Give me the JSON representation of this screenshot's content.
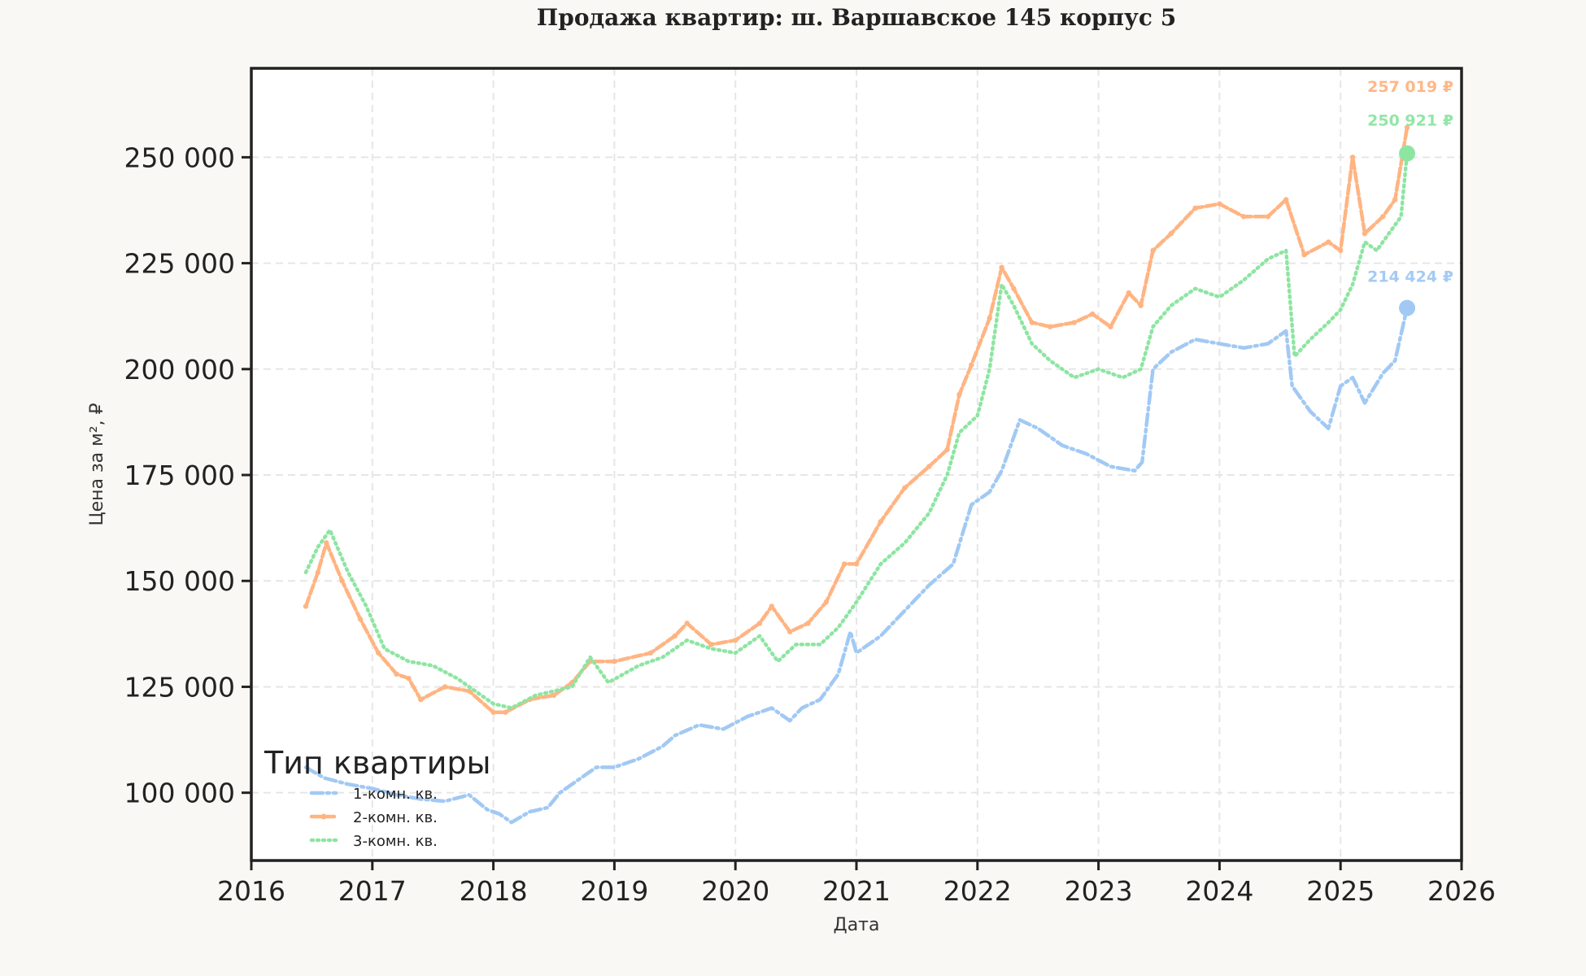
{
  "chart_data": {
    "type": "line",
    "title": "Продажа квартир: ш. Варшавское 145 корпус 5",
    "xlabel": "Дата",
    "ylabel": "Цена за м², ₽",
    "xlim": [
      2016.0,
      2026.0
    ],
    "ylim": [
      84000,
      271000
    ],
    "x_ticks": [
      2016,
      2017,
      2018,
      2019,
      2020,
      2021,
      2022,
      2023,
      2024,
      2025,
      2026
    ],
    "x_tick_labels": [
      "2016",
      "2017",
      "2018",
      "2019",
      "2020",
      "2021",
      "2022",
      "2023",
      "2024",
      "2025",
      "2026"
    ],
    "y_ticks": [
      100000,
      125000,
      150000,
      175000,
      200000,
      225000,
      250000
    ],
    "y_tick_labels": [
      "100 000",
      "125 000",
      "150 000",
      "175 000",
      "200 000",
      "225 000",
      "250 000"
    ],
    "grid": true,
    "legend": {
      "title": "Тип квартиры",
      "position": "lower-left"
    },
    "series": [
      {
        "name": "1-комн. кв.",
        "color": "#a1c9f4",
        "style": "dashdot",
        "x": [
          2016.45,
          2016.6,
          2016.8,
          2017.0,
          2017.2,
          2017.4,
          2017.6,
          2017.8,
          2017.95,
          2018.05,
          2018.15,
          2018.3,
          2018.45,
          2018.55,
          2018.7,
          2018.85,
          2019.0,
          2019.2,
          2019.4,
          2019.5,
          2019.7,
          2019.9,
          2020.1,
          2020.3,
          2020.45,
          2020.55,
          2020.7,
          2020.85,
          2020.95,
          2021.0,
          2021.2,
          2021.4,
          2021.6,
          2021.8,
          2021.95,
          2022.1,
          2022.2,
          2022.35,
          2022.5,
          2022.7,
          2022.9,
          2023.1,
          2023.3,
          2023.36,
          2023.45,
          2023.6,
          2023.8,
          2024.0,
          2024.2,
          2024.4,
          2024.55,
          2024.6,
          2024.75,
          2024.9,
          2025.0,
          2025.1,
          2025.2,
          2025.35,
          2025.45,
          2025.55
        ],
        "values": [
          106000,
          103500,
          102000,
          101000,
          99500,
          98500,
          98000,
          99500,
          96000,
          95000,
          93000,
          95500,
          96500,
          100000,
          103000,
          106000,
          106000,
          108000,
          111000,
          113500,
          116000,
          115000,
          118000,
          120000,
          117000,
          120000,
          122000,
          128000,
          138000,
          133000,
          137000,
          143000,
          149000,
          154000,
          168000,
          171000,
          176000,
          188000,
          186000,
          182000,
          180000,
          177000,
          176000,
          178000,
          200000,
          204000,
          207000,
          206000,
          205000,
          206000,
          209000,
          196000,
          190000,
          186000,
          196000,
          198000,
          192000,
          199000,
          202000,
          214424
        ]
      },
      {
        "name": "2-комн. кв.",
        "color": "#ffb482",
        "style": "dashed-markers",
        "x": [
          2016.45,
          2016.55,
          2016.62,
          2016.75,
          2016.9,
          2017.05,
          2017.2,
          2017.3,
          2017.4,
          2017.6,
          2017.8,
          2018.0,
          2018.1,
          2018.3,
          2018.5,
          2018.65,
          2018.8,
          2019.0,
          2019.3,
          2019.5,
          2019.6,
          2019.8,
          2020.0,
          2020.2,
          2020.3,
          2020.45,
          2020.6,
          2020.75,
          2020.9,
          2021.0,
          2021.2,
          2021.4,
          2021.6,
          2021.75,
          2021.85,
          2021.95,
          2022.1,
          2022.2,
          2022.3,
          2022.45,
          2022.6,
          2022.8,
          2022.95,
          2023.1,
          2023.25,
          2023.35,
          2023.45,
          2023.6,
          2023.8,
          2024.0,
          2024.2,
          2024.4,
          2024.55,
          2024.7,
          2024.9,
          2025.0,
          2025.1,
          2025.2,
          2025.35,
          2025.45,
          2025.55
        ],
        "values": [
          144000,
          152000,
          159000,
          150000,
          141000,
          133000,
          128000,
          127000,
          122000,
          125000,
          124000,
          119000,
          119000,
          122000,
          123000,
          126000,
          131000,
          131000,
          133000,
          137000,
          140000,
          135000,
          136000,
          140000,
          144000,
          138000,
          140000,
          145000,
          154000,
          154000,
          164000,
          172000,
          177000,
          181000,
          194000,
          201000,
          212000,
          224000,
          219000,
          211000,
          210000,
          211000,
          213000,
          210000,
          218000,
          215000,
          228000,
          232000,
          238000,
          239000,
          236000,
          236000,
          240000,
          227000,
          230000,
          228000,
          250000,
          232000,
          236000,
          240000,
          257019
        ]
      },
      {
        "name": "3-комн. кв.",
        "color": "#8de5a1",
        "style": "dotted",
        "x": [
          2016.45,
          2016.55,
          2016.65,
          2016.8,
          2016.95,
          2017.1,
          2017.3,
          2017.5,
          2017.7,
          2017.85,
          2018.0,
          2018.15,
          2018.35,
          2018.5,
          2018.65,
          2018.8,
          2018.95,
          2019.2,
          2019.4,
          2019.6,
          2019.8,
          2020.0,
          2020.2,
          2020.35,
          2020.5,
          2020.7,
          2020.85,
          2021.0,
          2021.2,
          2021.4,
          2021.6,
          2021.75,
          2021.85,
          2022.0,
          2022.1,
          2022.2,
          2022.3,
          2022.45,
          2022.6,
          2022.8,
          2023.0,
          2023.2,
          2023.35,
          2023.45,
          2023.6,
          2023.8,
          2024.0,
          2024.2,
          2024.4,
          2024.55,
          2024.62,
          2024.75,
          2024.9,
          2025.0,
          2025.1,
          2025.2,
          2025.3,
          2025.4,
          2025.5,
          2025.55
        ],
        "values": [
          152000,
          158000,
          162000,
          152000,
          144000,
          134000,
          131000,
          130000,
          127000,
          124000,
          121000,
          120000,
          123000,
          124000,
          125000,
          132000,
          126000,
          130000,
          132000,
          136000,
          134000,
          133000,
          137000,
          131000,
          135000,
          135000,
          139000,
          145000,
          154000,
          159000,
          166000,
          175000,
          185000,
          189000,
          200000,
          220000,
          215000,
          206000,
          202000,
          198000,
          200000,
          198000,
          200000,
          210000,
          215000,
          219000,
          217000,
          221000,
          226000,
          228000,
          203000,
          207000,
          211000,
          214000,
          220000,
          230000,
          228000,
          232000,
          236000,
          250921
        ]
      }
    ],
    "end_labels": [
      {
        "series": "1-комн. кв.",
        "text": "214 424 ₽",
        "color": "#a1c9f4"
      },
      {
        "series": "2-комн. кв.",
        "text": "257 019 ₽",
        "color": "#ffb482"
      },
      {
        "series": "3-комн. кв.",
        "text": "250 921 ₽",
        "color": "#8de5a1"
      }
    ]
  }
}
